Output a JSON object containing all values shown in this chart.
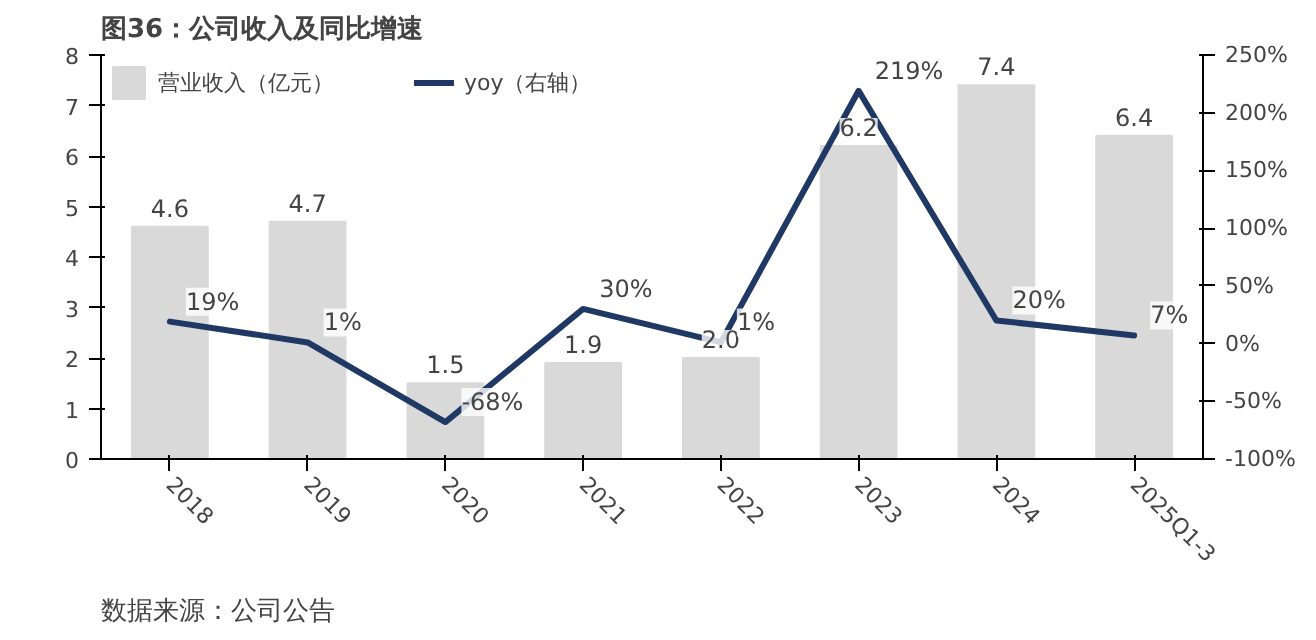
{
  "chart_data": {
    "type": "bar",
    "title": "图36：公司收入及同比增速",
    "categories": [
      "2018",
      "2019",
      "2020",
      "2021",
      "2022",
      "2023",
      "2024",
      "2025Q1-3"
    ],
    "series": [
      {
        "name": "营业收入（亿元）",
        "color": "#d9d9d9",
        "values": [
          4.6,
          4.7,
          1.5,
          1.9,
          2.0,
          6.2,
          7.4,
          6.4
        ],
        "value_labels": [
          "4.6",
          "4.7",
          "1.5",
          "1.9",
          "2.0",
          "6.2",
          "7.4",
          "6.4"
        ]
      },
      {
        "name": "yoy（右轴）",
        "type": "line",
        "axis": "y2",
        "color": "#1f3864",
        "values": [
          19,
          1,
          -68,
          30,
          1,
          219,
          20,
          7
        ],
        "value_labels": [
          "19%",
          "1%",
          "-68%",
          "30%",
          "1%",
          "219%",
          "20%",
          "7%"
        ]
      }
    ],
    "ylim": [
      0,
      8
    ],
    "yticks": [
      0,
      1,
      2,
      3,
      4,
      5,
      6,
      7,
      8
    ],
    "y2lim": [
      -100,
      250
    ],
    "y2ticks": [
      {
        "value": -100,
        "label": "-100%"
      },
      {
        "value": -50,
        "label": "-50%"
      },
      {
        "value": 0,
        "label": "0%"
      },
      {
        "value": 50,
        "label": "50%"
      },
      {
        "value": 100,
        "label": "100%"
      },
      {
        "value": 150,
        "label": "150%"
      },
      {
        "value": 200,
        "label": "200%"
      },
      {
        "value": 250,
        "label": "250%"
      }
    ],
    "grid": false,
    "legend": "top",
    "marker": "none",
    "line_style": "solid",
    "annotations": [
      "数据来源：公司公告"
    ]
  }
}
